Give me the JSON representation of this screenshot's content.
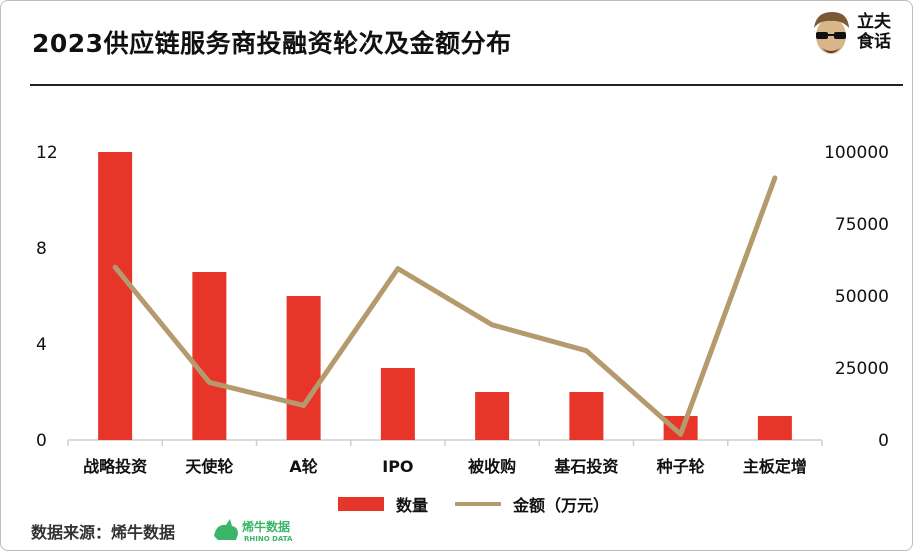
{
  "title": "2023供应链服务商投融资轮次及金额分布",
  "brand": {
    "line1": "立夫",
    "line2": "食话"
  },
  "source": {
    "label": "数据来源：烯牛数据",
    "logo_main": "烯牛数据",
    "logo_sub": "RHINO DATA"
  },
  "colors": {
    "bar": "#e8352a",
    "line": "#b49a6c",
    "rhino": "#3bb56a"
  },
  "chart_data": {
    "type": "bar+line",
    "title": "2023供应链服务商投融资轮次及金额分布",
    "categories": [
      "战略投资",
      "天使轮",
      "A轮",
      "IPO",
      "被收购",
      "基石投资",
      "种子轮",
      "主板定增"
    ],
    "series": [
      {
        "name": "数量",
        "type": "bar",
        "axis": "left",
        "values": [
          12,
          7,
          6,
          3,
          2,
          2,
          1,
          1
        ]
      },
      {
        "name": "金额（万元）",
        "type": "line",
        "axis": "right",
        "values": [
          60000,
          20000,
          12000,
          59500,
          40000,
          31000,
          2000,
          91000
        ]
      }
    ],
    "y_left": {
      "ticks": [
        0,
        4,
        8,
        12
      ],
      "lim": [
        0,
        12
      ]
    },
    "y_right": {
      "ticks": [
        0,
        25000,
        50000,
        75000,
        100000
      ],
      "lim": [
        0,
        100000
      ]
    },
    "grid": false,
    "legend": "bottom"
  }
}
